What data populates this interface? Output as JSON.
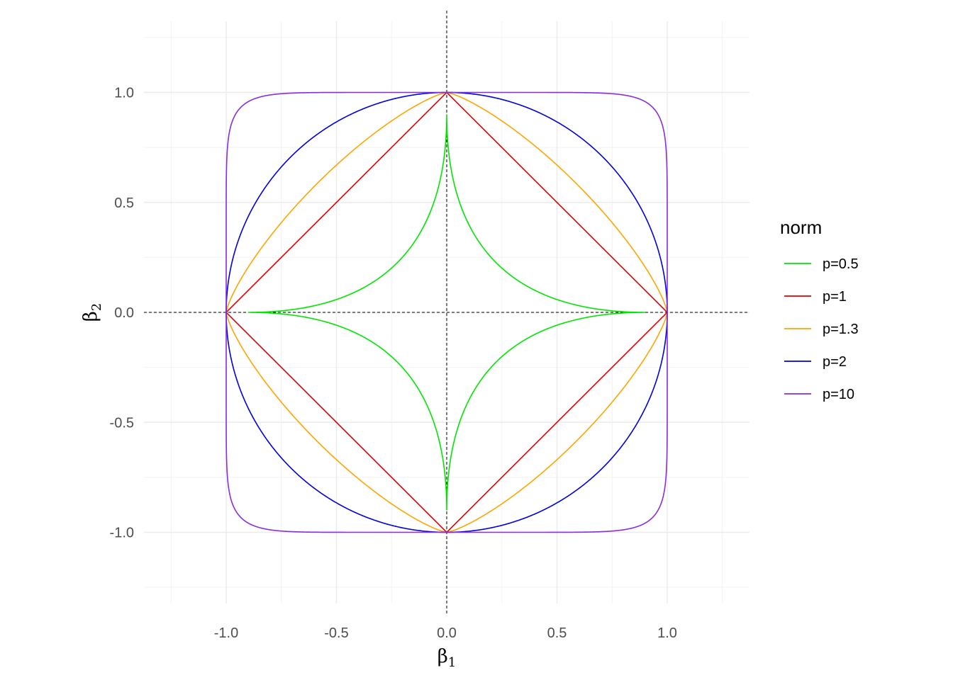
{
  "chart_data": {
    "type": "line",
    "title": "",
    "xlabel": "β",
    "xlabel_sub": "1",
    "ylabel": "β",
    "ylabel_sub": "2",
    "xlim": [
      -1.38,
      1.38
    ],
    "ylim": [
      -1.38,
      1.38
    ],
    "x_ticks": [
      -1.0,
      -0.5,
      0.0,
      0.5,
      1.0
    ],
    "x_tick_labels": [
      "-1.0",
      "-0.5",
      "0.0",
      "0.5",
      "1.0"
    ],
    "y_ticks": [
      -1.0,
      -0.5,
      0.0,
      0.5,
      1.0
    ],
    "y_tick_labels": [
      "-1.0",
      "-0.5",
      "0.0",
      "0.5",
      "1.0"
    ],
    "grid": true,
    "reference_lines": [
      {
        "axis": "x",
        "value": 0,
        "style": "dashed"
      },
      {
        "axis": "y",
        "value": 0,
        "style": "dashed"
      }
    ],
    "legend": {
      "title": "norm",
      "placement": "right"
    },
    "series": [
      {
        "name": "p=0.5",
        "p": 0.5,
        "radius": 0.9,
        "color": "#00e600"
      },
      {
        "name": "p=1",
        "p": 1,
        "radius": 1.0,
        "color": "#e00000"
      },
      {
        "name": "p=1.3",
        "p": 1.3,
        "radius": 1.0,
        "color": "#ffa500"
      },
      {
        "name": "p=2",
        "p": 2,
        "radius": 1.0,
        "color": "#0000e0"
      },
      {
        "name": "p=10",
        "p": 10,
        "radius": 1.0,
        "color": "#8a2be2"
      }
    ]
  }
}
